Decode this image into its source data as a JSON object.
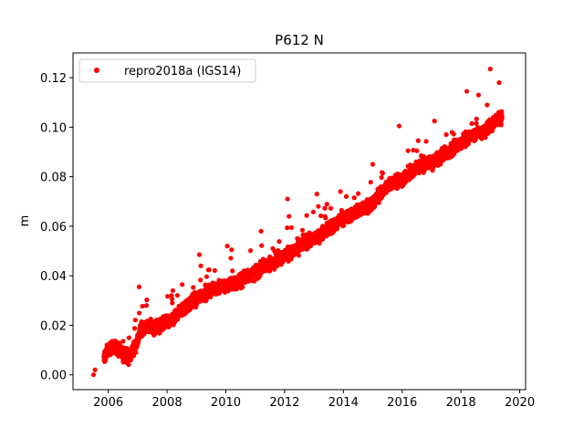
{
  "chart_data": {
    "type": "scatter",
    "title": "P612 N",
    "xlabel": "",
    "ylabel": "m",
    "xlim": [
      2004.8,
      2020.2
    ],
    "ylim": [
      -0.006,
      0.13
    ],
    "xticks": [
      2006,
      2008,
      2010,
      2012,
      2014,
      2016,
      2018,
      2020
    ],
    "yticks": [
      0.0,
      0.02,
      0.04,
      0.06,
      0.08,
      0.1,
      0.12
    ],
    "ytick_labels": [
      "0.00",
      "0.02",
      "0.04",
      "0.06",
      "0.08",
      "0.10",
      "0.12"
    ],
    "legend_position": "top-left",
    "grid": false,
    "series": [
      {
        "name": "repro2018a (IGS14)",
        "color": "#ff0000",
        "marker": "circle",
        "trend": {
          "x_start": 2005.5,
          "y_start": 0.001,
          "x_end": 2019.4,
          "y_end": 0.103
        },
        "x": [
          2005.5,
          2005.55,
          2005.9,
          2006.0,
          2006.2,
          2006.5,
          2006.7,
          2007.0,
          2007.1,
          2007.3,
          2007.6,
          2008.0,
          2008.1,
          2008.4,
          2008.7,
          2009.0,
          2009.3,
          2009.6,
          2010.0,
          2010.3,
          2010.6,
          2011.0,
          2011.2,
          2011.5,
          2012.0,
          2012.3,
          2012.6,
          2013.0,
          2013.3,
          2013.6,
          2014.0,
          2014.3,
          2014.6,
          2015.0,
          2015.3,
          2015.6,
          2016.0,
          2016.3,
          2016.6,
          2017.0,
          2017.3,
          2017.6,
          2018.0,
          2018.3,
          2018.6,
          2019.0,
          2019.2,
          2019.4
        ],
        "y": [
          0.0,
          0.002,
          0.008,
          0.01,
          0.012,
          0.008,
          0.007,
          0.014,
          0.018,
          0.02,
          0.019,
          0.022,
          0.021,
          0.025,
          0.028,
          0.031,
          0.033,
          0.035,
          0.036,
          0.037,
          0.039,
          0.041,
          0.043,
          0.045,
          0.048,
          0.05,
          0.053,
          0.055,
          0.057,
          0.06,
          0.063,
          0.065,
          0.067,
          0.069,
          0.074,
          0.077,
          0.079,
          0.082,
          0.084,
          0.086,
          0.088,
          0.09,
          0.094,
          0.096,
          0.098,
          0.1,
          0.103,
          0.104
        ]
      }
    ],
    "outliers": {
      "x": [
        2007.05,
        2007.3,
        2008.15,
        2008.2,
        2009.1,
        2009.15,
        2010.05,
        2010.2,
        2011.2,
        2011.6,
        2012.1,
        2012.15,
        2013.1,
        2013.15,
        2013.9,
        2014.1,
        2015.0,
        2015.9,
        2016.2,
        2016.5,
        2017.1,
        2017.5,
        2018.2,
        2018.6,
        2019.0,
        2019.3
      ],
      "y": [
        0.0355,
        0.028,
        0.032,
        0.034,
        0.0485,
        0.044,
        0.052,
        0.0505,
        0.058,
        0.051,
        0.071,
        0.064,
        0.073,
        0.068,
        0.074,
        0.072,
        0.085,
        0.1005,
        0.0905,
        0.0905,
        0.1025,
        0.097,
        0.1145,
        0.113,
        0.1235,
        0.118
      ]
    }
  }
}
